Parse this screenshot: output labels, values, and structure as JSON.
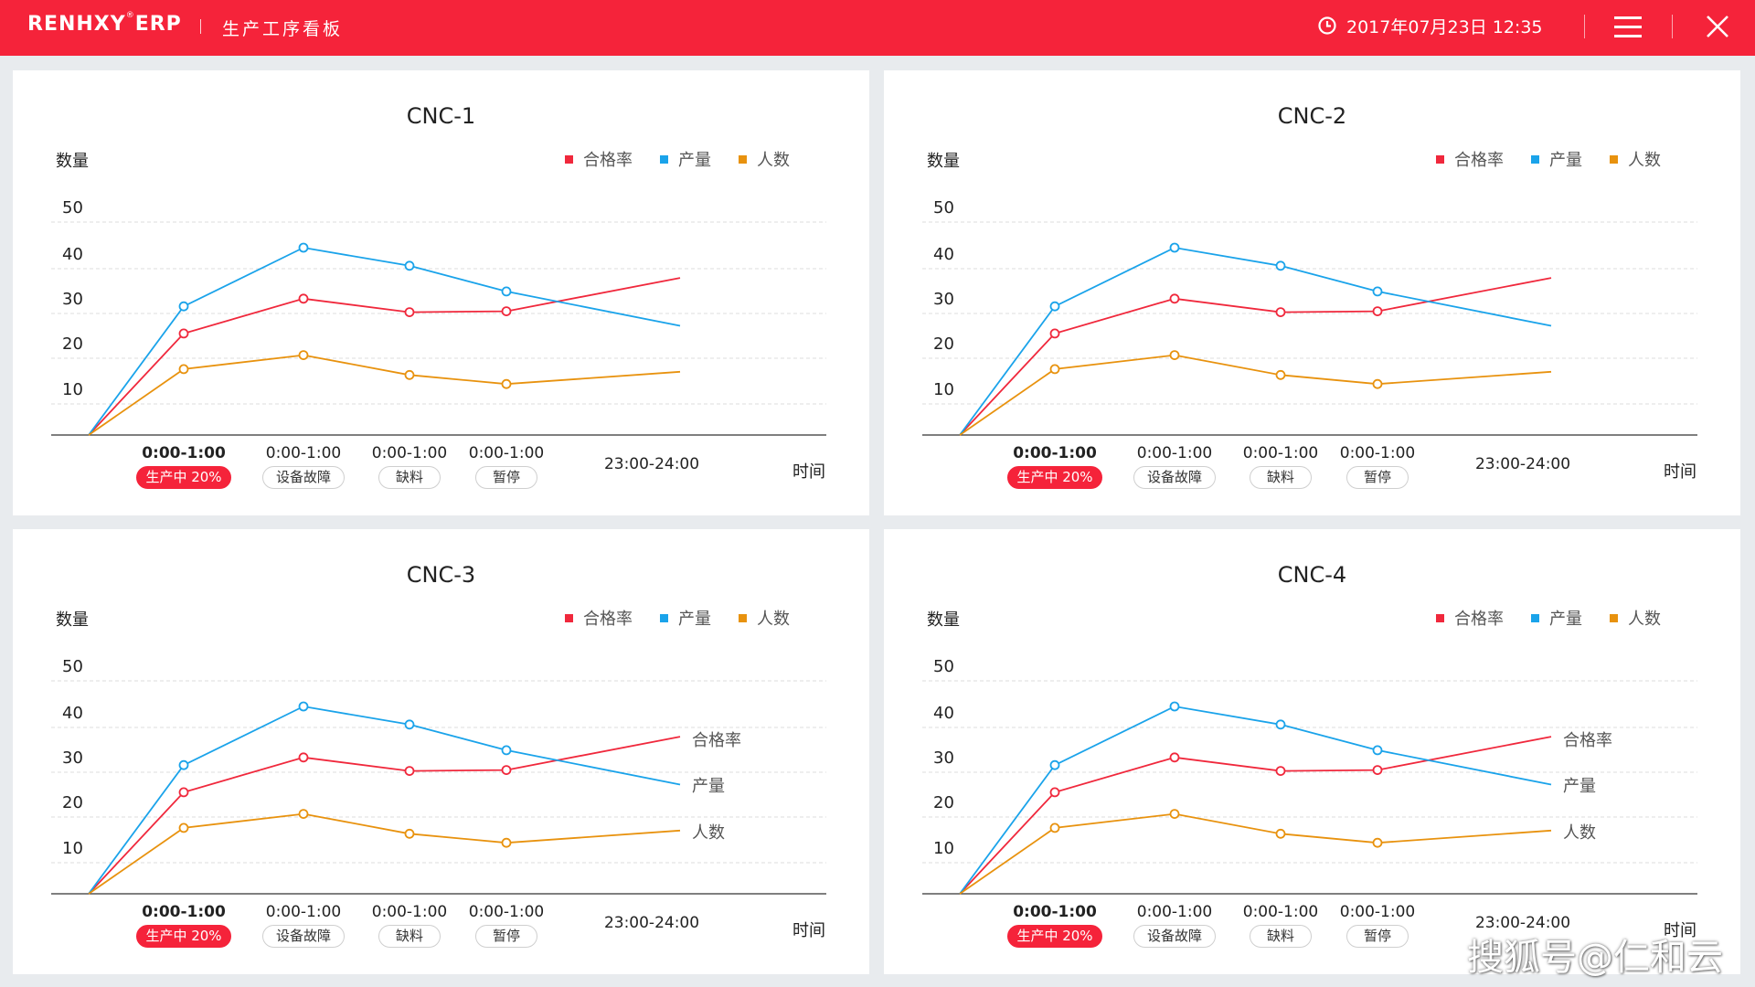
{
  "header": {
    "brand": "RENHXY",
    "brand_mark": "®",
    "brand_suffix": "ERP",
    "page_title": "生产工序看板",
    "datetime": "2017年07月23日 12:35",
    "color": "#f5233a"
  },
  "legend": [
    {
      "label": "合格率",
      "color": "#f0283c"
    },
    {
      "label": "产量",
      "color": "#1aa3ea"
    },
    {
      "label": "人数",
      "color": "#e8920e"
    }
  ],
  "axis": {
    "y_title": "数量",
    "x_unit": "时间",
    "y_ticks": [
      "50",
      "40",
      "30",
      "20",
      "10"
    ]
  },
  "x_slots": [
    {
      "time": "0:00-1:00",
      "status": "生产中 20%",
      "active": true
    },
    {
      "time": "0:00-1:00",
      "status": "设备故障",
      "active": false
    },
    {
      "time": "0:00-1:00",
      "status": "缺料",
      "active": false
    },
    {
      "time": "0:00-1:00",
      "status": "暂停",
      "active": false
    },
    {
      "time": "23:00-24:00",
      "status": null,
      "active": false
    }
  ],
  "chart_data": [
    {
      "type": "line",
      "title": "CNC-1",
      "x": [
        "0",
        "0:00-1:00",
        "0:00-1:00",
        "0:00-1:00",
        "0:00-1:00",
        "23:00-24:00"
      ],
      "series": [
        {
          "name": "合格率",
          "values": [
            0,
            22.5,
            30.2,
            27.2,
            27.4,
            34.8
          ]
        },
        {
          "name": "产量",
          "values": [
            0,
            28.5,
            41.5,
            37.5,
            31.8,
            24.2
          ]
        },
        {
          "name": "人数",
          "values": [
            0,
            14.6,
            17.7,
            13.3,
            11.3,
            14.0
          ]
        }
      ],
      "xlabel": "时间",
      "ylabel": "数量",
      "ylim": [
        0,
        50
      ],
      "end_labels": false
    },
    {
      "type": "line",
      "title": "CNC-2",
      "x": [
        "0",
        "0:00-1:00",
        "0:00-1:00",
        "0:00-1:00",
        "0:00-1:00",
        "23:00-24:00"
      ],
      "series": [
        {
          "name": "合格率",
          "values": [
            0,
            22.5,
            30.2,
            27.2,
            27.4,
            34.8
          ]
        },
        {
          "name": "产量",
          "values": [
            0,
            28.5,
            41.5,
            37.5,
            31.8,
            24.2
          ]
        },
        {
          "name": "人数",
          "values": [
            0,
            14.6,
            17.7,
            13.3,
            11.3,
            14.0
          ]
        }
      ],
      "xlabel": "时间",
      "ylabel": "数量",
      "ylim": [
        0,
        50
      ],
      "end_labels": false
    },
    {
      "type": "line",
      "title": "CNC-3",
      "x": [
        "0",
        "0:00-1:00",
        "0:00-1:00",
        "0:00-1:00",
        "0:00-1:00",
        "23:00-24:00"
      ],
      "series": [
        {
          "name": "合格率",
          "values": [
            0,
            22.5,
            30.2,
            27.2,
            27.4,
            34.8
          ]
        },
        {
          "name": "产量",
          "values": [
            0,
            28.5,
            41.5,
            37.5,
            31.8,
            24.2
          ]
        },
        {
          "name": "人数",
          "values": [
            0,
            14.6,
            17.7,
            13.3,
            11.3,
            14.0
          ]
        }
      ],
      "xlabel": "时间",
      "ylabel": "数量",
      "ylim": [
        0,
        50
      ],
      "end_labels": true
    },
    {
      "type": "line",
      "title": "CNC-4",
      "x": [
        "0",
        "0:00-1:00",
        "0:00-1:00",
        "0:00-1:00",
        "0:00-1:00",
        "23:00-24:00"
      ],
      "series": [
        {
          "name": "合格率",
          "values": [
            0,
            22.5,
            30.2,
            27.2,
            27.4,
            34.8
          ]
        },
        {
          "name": "产量",
          "values": [
            0,
            28.5,
            41.5,
            37.5,
            31.8,
            24.2
          ]
        },
        {
          "name": "人数",
          "values": [
            0,
            14.6,
            17.7,
            13.3,
            11.3,
            14.0
          ]
        }
      ],
      "xlabel": "时间",
      "ylabel": "数量",
      "ylim": [
        0,
        50
      ],
      "end_labels": true
    }
  ],
  "watermark": "搜狐号@仁和云"
}
